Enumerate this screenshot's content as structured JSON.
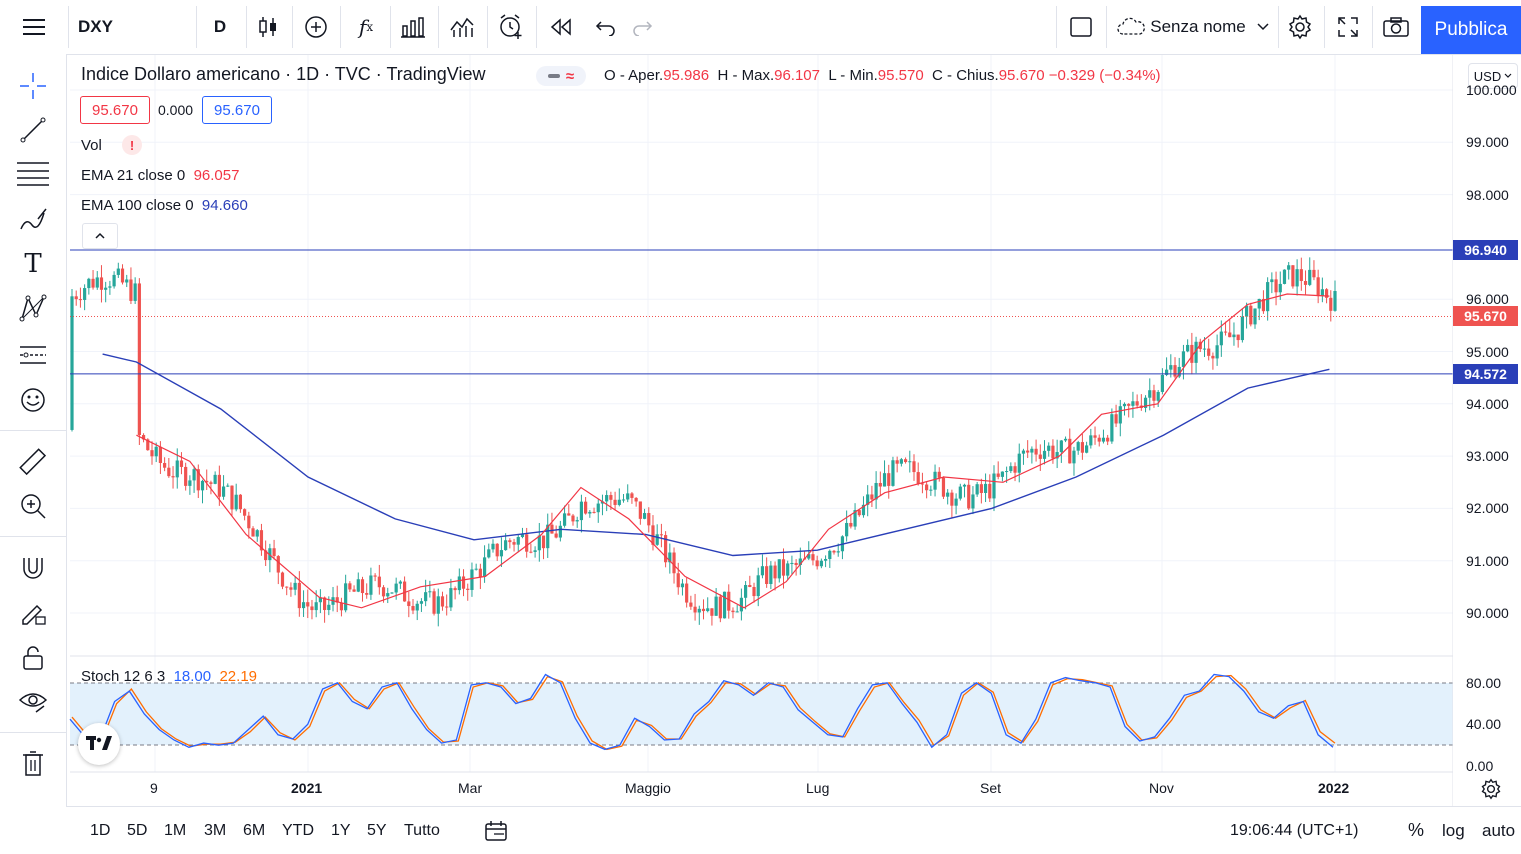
{
  "toolbar": {
    "symbol": "DXY",
    "interval": "D",
    "layout_name": "Senza nome",
    "publish_label": "Pubblica",
    "icons": [
      "menu-icon",
      "candles-icon",
      "add-compare-icon",
      "indicators-icon",
      "templates-icon",
      "alert-icon",
      "replay-icon",
      "undo-icon",
      "redo-icon",
      "layout-icon",
      "settings-icon",
      "fullscreen-icon",
      "camera-icon"
    ]
  },
  "legend": {
    "title": "Indice Dollaro americano · 1D · TVC · TradingView",
    "open_label": "O - Aper.",
    "open": "95.986",
    "high_label": "H - Max.",
    "high": "96.107",
    "low_label": "L - Min.",
    "low": "95.570",
    "close_label": "C - Chius.",
    "close": "95.670",
    "change": "−0.329 (−0.34%)",
    "bid": "95.670",
    "spread": "0.000",
    "ask": "95.670",
    "vol_label": "Vol",
    "vol_warning": "!",
    "ema21_label": "EMA 21 close 0",
    "ema21_value": "96.057",
    "ema100_label": "EMA 100 close 0",
    "ema100_value": "94.660",
    "stoch_label": "Stoch 12 6 3",
    "stoch_k": "18.00",
    "stoch_d": "22.19"
  },
  "axis": {
    "currency": "USD",
    "price_ticks": [
      "100.000",
      "99.000",
      "98.000",
      "96.000",
      "95.000",
      "94.000",
      "93.000",
      "92.000",
      "91.000",
      "90.000"
    ],
    "stoch_ticks": [
      "80.00",
      "40.00",
      "0.00"
    ],
    "time_ticks": [
      "9",
      "2021",
      "Mar",
      "Maggio",
      "Lug",
      "Set",
      "Nov",
      "2022"
    ],
    "tag_upper": "96.940",
    "tag_last": "95.670",
    "tag_lower": "94.572"
  },
  "bottom": {
    "ranges": [
      "1D",
      "5D",
      "1M",
      "3M",
      "6M",
      "YTD",
      "1Y",
      "5Y",
      "Tutto"
    ],
    "clock": "19:06:44 (UTC+1)",
    "percent": "%",
    "log": "log",
    "auto": "auto"
  },
  "colors": {
    "up": "#26a69a",
    "down": "#ef5350",
    "ema21": "#f23645",
    "ema100": "#2a3fb8",
    "hline": "#2a3fb8",
    "stoch_k": "#2962ff",
    "stoch_d": "#ff6d00",
    "accent": "#2962ff"
  },
  "chart_data": {
    "type": "candlestick",
    "ylim": [
      89.3,
      100.3
    ],
    "horizontal_lines": [
      96.94,
      94.572
    ],
    "last_price": 95.67,
    "ema21": [
      {
        "x": "2020-11-01",
        "y": 93.4
      },
      {
        "x": "2020-11-20",
        "y": 92.9
      },
      {
        "x": "2020-12-10",
        "y": 91.5
      },
      {
        "x": "2021-01-05",
        "y": 90.3
      },
      {
        "x": "2021-01-20",
        "y": 90.1
      },
      {
        "x": "2021-02-10",
        "y": 90.5
      },
      {
        "x": "2021-03-05",
        "y": 90.7
      },
      {
        "x": "2021-03-25",
        "y": 91.5
      },
      {
        "x": "2021-04-08",
        "y": 92.4
      },
      {
        "x": "2021-04-25",
        "y": 91.8
      },
      {
        "x": "2021-05-15",
        "y": 90.7
      },
      {
        "x": "2021-06-05",
        "y": 90.1
      },
      {
        "x": "2021-06-20",
        "y": 90.6
      },
      {
        "x": "2021-07-05",
        "y": 91.6
      },
      {
        "x": "2021-07-25",
        "y": 92.3
      },
      {
        "x": "2021-08-15",
        "y": 92.6
      },
      {
        "x": "2021-09-05",
        "y": 92.5
      },
      {
        "x": "2021-09-25",
        "y": 93.0
      },
      {
        "x": "2021-10-10",
        "y": 93.8
      },
      {
        "x": "2021-10-30",
        "y": 94.0
      },
      {
        "x": "2021-11-15",
        "y": 95.2
      },
      {
        "x": "2021-12-01",
        "y": 95.9
      },
      {
        "x": "2021-12-15",
        "y": 96.1
      },
      {
        "x": "2021-12-30",
        "y": 96.06
      }
    ],
    "ema100": [
      {
        "x": "2020-11-01",
        "y": 94.8
      },
      {
        "x": "2020-12-01",
        "y": 93.9
      },
      {
        "x": "2021-01-01",
        "y": 92.6
      },
      {
        "x": "2021-02-01",
        "y": 91.8
      },
      {
        "x": "2021-03-01",
        "y": 91.4
      },
      {
        "x": "2021-04-01",
        "y": 91.6
      },
      {
        "x": "2021-05-01",
        "y": 91.5
      },
      {
        "x": "2021-06-01",
        "y": 91.1
      },
      {
        "x": "2021-07-01",
        "y": 91.2
      },
      {
        "x": "2021-08-01",
        "y": 91.6
      },
      {
        "x": "2021-09-01",
        "y": 92.0
      },
      {
        "x": "2021-10-01",
        "y": 92.6
      },
      {
        "x": "2021-11-01",
        "y": 93.4
      },
      {
        "x": "2021-12-01",
        "y": 94.3
      },
      {
        "x": "2021-12-30",
        "y": 94.66
      }
    ],
    "stoch": {
      "levels": [
        20,
        80
      ],
      "ylim": [
        0,
        100
      ],
      "k": [
        45,
        28,
        25,
        62,
        72,
        50,
        35,
        25,
        18,
        22,
        20,
        22,
        35,
        48,
        30,
        26,
        40,
        74,
        80,
        62,
        55,
        76,
        80,
        55,
        35,
        22,
        25,
        78,
        80,
        76,
        60,
        65,
        88,
        80,
        46,
        22,
        16,
        20,
        46,
        38,
        25,
        26,
        50,
        62,
        82,
        78,
        68,
        80,
        76,
        54,
        42,
        30,
        28,
        55,
        78,
        80,
        60,
        42,
        18,
        30,
        70,
        80,
        70,
        30,
        22,
        45,
        80,
        85,
        82,
        80,
        76,
        38,
        24,
        28,
        46,
        68,
        72,
        88,
        86,
        72,
        52,
        46,
        58,
        62,
        30,
        18
      ],
      "d": [
        47,
        30,
        24,
        60,
        74,
        52,
        36,
        26,
        19,
        21,
        21,
        23,
        33,
        47,
        32,
        25,
        38,
        72,
        80,
        64,
        55,
        74,
        80,
        57,
        36,
        23,
        24,
        76,
        80,
        77,
        61,
        64,
        86,
        81,
        48,
        24,
        16,
        19,
        44,
        39,
        26,
        26,
        48,
        61,
        80,
        79,
        69,
        79,
        77,
        56,
        43,
        31,
        28,
        53,
        76,
        80,
        61,
        44,
        20,
        29,
        68,
        80,
        71,
        32,
        23,
        43,
        78,
        84,
        83,
        80,
        77,
        40,
        25,
        27,
        44,
        66,
        72,
        86,
        87,
        74,
        54,
        46,
        56,
        63,
        33,
        22
      ]
    }
  }
}
